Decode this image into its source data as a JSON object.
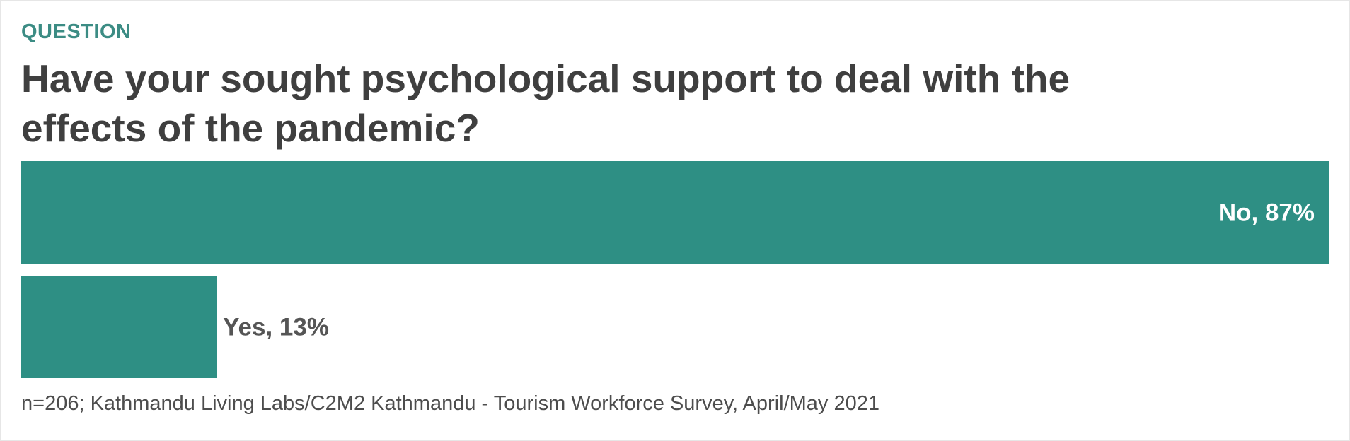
{
  "kicker": "QUESTION",
  "title": "Have your sought psychological support to deal with the effects of the pandemic?",
  "footer": "n=206; Kathmandu Living Labs/C2M2 Kathmandu - Tourism Workforce Survey, April/May 2021",
  "colors": {
    "bar": "#2e8f84",
    "kicker": "#3c8c84",
    "title": "#3f3f3f"
  },
  "chart_data": {
    "type": "bar",
    "orientation": "horizontal",
    "title": "Have your sought psychological support to deal with the effects of the pandemic?",
    "categories": [
      "No",
      "Yes"
    ],
    "values": [
      87,
      13
    ],
    "labels": [
      "No, 87%",
      "Yes, 13%"
    ],
    "unit": "%",
    "xlim": [
      0,
      87
    ],
    "grid": false,
    "legend": "none"
  }
}
